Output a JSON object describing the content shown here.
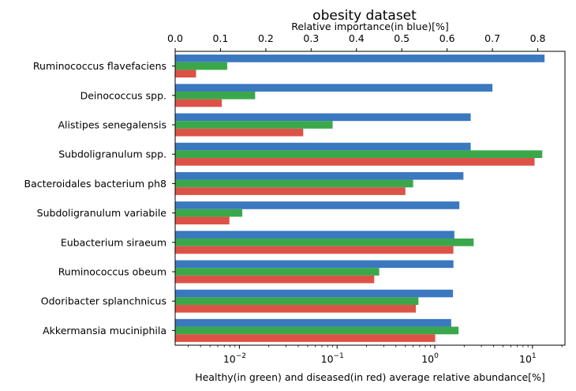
{
  "chart_data": {
    "type": "bar",
    "orientation": "horizontal",
    "title": "obesity dataset",
    "top_axis": {
      "label": "Relative importance(in blue)[%]",
      "scale": "linear",
      "range": [
        0,
        0.86
      ],
      "ticks": [
        0.0,
        0.1,
        0.2,
        0.3,
        0.4,
        0.5,
        0.6,
        0.7,
        0.8
      ],
      "tick_labels": [
        "0.0",
        "0.1",
        "0.2",
        "0.3",
        "0.4",
        "0.5",
        "0.6",
        "0.7",
        "0.8"
      ]
    },
    "bottom_axis": {
      "label": "Healthy(in green) and diseased(in red) average relative abundance[%]",
      "scale": "log",
      "range": [
        0.0022,
        21.5
      ],
      "ticks": [
        0.01,
        0.1,
        1,
        10
      ],
      "tick_labels": [
        {
          "base": "10",
          "exp": "−2"
        },
        {
          "base": "10",
          "exp": "−1"
        },
        {
          "base": "10",
          "exp": "0"
        },
        {
          "base": "10",
          "exp": "1"
        }
      ],
      "minor_ticks": true
    },
    "categories": [
      "Ruminococcus flavefaciens",
      "Deinococcus spp.",
      "Alistipes senegalensis",
      "Subdoligranulum spp.",
      "Bacteroidales bacterium ph8",
      "Subdoligranulum variabile",
      "Eubacterium siraeum",
      "Ruminococcus obeum",
      "Odoribacter splanchnicus",
      "Akkermansia muciniphila"
    ],
    "series": [
      {
        "axis": "top",
        "color": "#3a78bf",
        "values": [
          0.815,
          0.7,
          0.652,
          0.652,
          0.636,
          0.627,
          0.616,
          0.614,
          0.613,
          0.609
        ]
      },
      {
        "axis": "bottom",
        "color": "#3aa84a",
        "values": [
          0.0075,
          0.0145,
          0.09,
          12.6,
          0.6,
          0.0107,
          2.5,
          0.27,
          0.68,
          1.75
        ]
      },
      {
        "axis": "bottom",
        "color": "#dd5247",
        "values": [
          0.0036,
          0.0066,
          0.045,
          10.5,
          0.5,
          0.0079,
          1.55,
          0.24,
          0.64,
          1.01
        ]
      }
    ],
    "grid": false,
    "legend": "none"
  }
}
